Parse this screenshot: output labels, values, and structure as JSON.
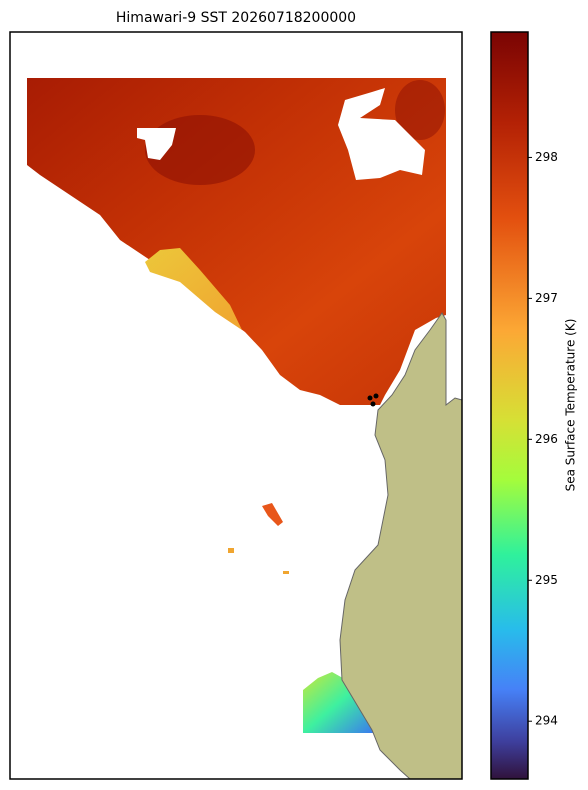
{
  "chart_data": {
    "type": "map",
    "title": "Himawari-9 SST 20260718200000",
    "colorbar": {
      "label": "Sea Surface Temperature (K)",
      "lim": [
        293.59,
        298.89
      ],
      "ticks": [
        294,
        295,
        296,
        297,
        298
      ]
    }
  }
}
